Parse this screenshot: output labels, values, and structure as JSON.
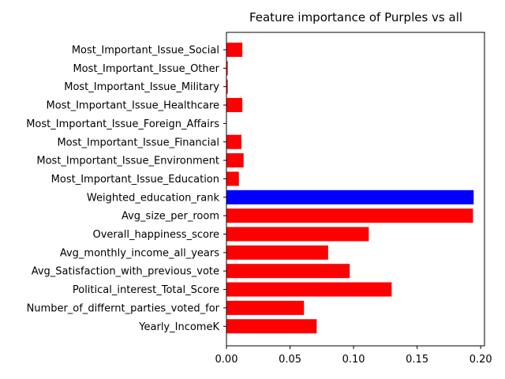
{
  "chart_data": {
    "type": "bar",
    "orientation": "horizontal",
    "title": "Feature importance of Purples vs all",
    "xlabel": "",
    "ylabel": "",
    "xlim": [
      0,
      0.203
    ],
    "xticks": [
      "0.00",
      "0.05",
      "0.10",
      "0.15",
      "0.20"
    ],
    "grid": false,
    "categories": [
      "Most_Important_Issue_Social",
      "Most_Important_Issue_Other",
      "Most_Important_Issue_Military",
      "Most_Important_Issue_Healthcare",
      "Most_Important_Issue_Foreign_Affairs",
      "Most_Important_Issue_Financial",
      "Most_Important_Issue_Environment",
      "Most_Important_Issue_Education",
      "Weighted_education_rank",
      "Avg_size_per_room",
      "Overall_happiness_score",
      "Avg_monthly_income_all_years",
      "Avg_Satisfaction_with_previous_vote",
      "Political_interest_Total_Score",
      "Number_of_differnt_parties_voted_for",
      "Yearly_IncomeK"
    ],
    "values": [
      0.0125,
      0.001,
      0.001,
      0.0125,
      0.0,
      0.0118,
      0.0135,
      0.0098,
      0.1945,
      0.194,
      0.112,
      0.08,
      0.097,
      0.13,
      0.061,
      0.071
    ],
    "colors": [
      "#ff0000",
      "#ff0000",
      "#ff0000",
      "#ff0000",
      "#ff0000",
      "#ff0000",
      "#ff0000",
      "#ff0000",
      "#0000ff",
      "#ff0000",
      "#ff0000",
      "#ff0000",
      "#ff0000",
      "#ff0000",
      "#ff0000",
      "#ff0000"
    ]
  }
}
